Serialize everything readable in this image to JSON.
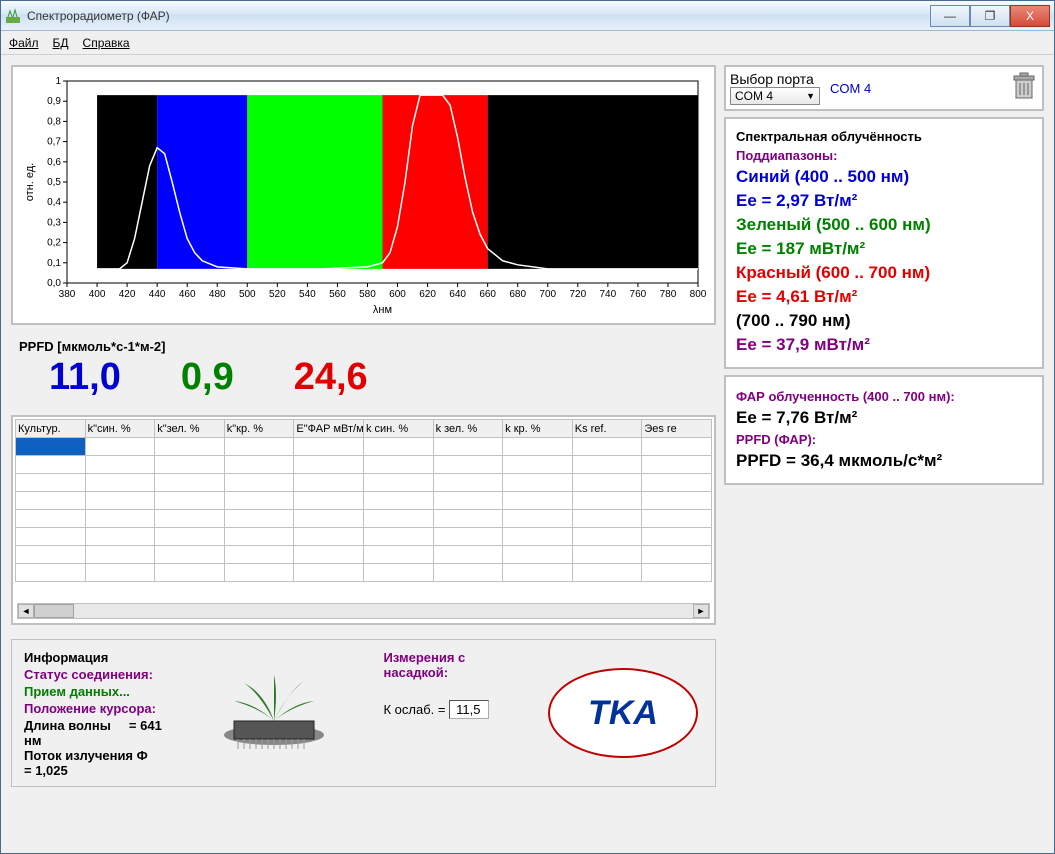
{
  "window": {
    "title": "Спектрорадиометр (ФАР)",
    "minimize": "—",
    "maximize": "❐",
    "close": "X"
  },
  "menubar": {
    "file": "Файл",
    "db": "БД",
    "help": "Справка"
  },
  "chart": {
    "ylabel": "отн. ед.",
    "xlabel": "λнм",
    "xlim": [
      380,
      800
    ],
    "ylim": [
      0,
      1
    ],
    "xtick_step": 20,
    "ytick_step": 0.1,
    "background_color": "#ffffff",
    "grid_color": "#000000",
    "tick_fontsize": 10,
    "label_fontsize": 11,
    "blocks": [
      {
        "from": 400,
        "to": 440,
        "color": "#000000"
      },
      {
        "from": 440,
        "to": 500,
        "color": "#0000ff"
      },
      {
        "from": 500,
        "to": 590,
        "color": "#00ff00"
      },
      {
        "from": 590,
        "to": 660,
        "color": "#ff0000"
      },
      {
        "from": 660,
        "to": 800,
        "color": "#000000"
      }
    ],
    "block_ylow": 0.07,
    "block_yhigh": 0.93,
    "curve_color": "#ffffff",
    "curve_width": 1.5,
    "curve": [
      [
        400,
        0.07
      ],
      [
        410,
        0.07
      ],
      [
        415,
        0.07
      ],
      [
        420,
        0.1
      ],
      [
        425,
        0.22
      ],
      [
        430,
        0.4
      ],
      [
        435,
        0.58
      ],
      [
        440,
        0.67
      ],
      [
        445,
        0.64
      ],
      [
        450,
        0.5
      ],
      [
        455,
        0.35
      ],
      [
        460,
        0.22
      ],
      [
        465,
        0.15
      ],
      [
        470,
        0.11
      ],
      [
        480,
        0.08
      ],
      [
        500,
        0.07
      ],
      [
        550,
        0.07
      ],
      [
        580,
        0.08
      ],
      [
        590,
        0.1
      ],
      [
        595,
        0.15
      ],
      [
        600,
        0.28
      ],
      [
        605,
        0.5
      ],
      [
        610,
        0.78
      ],
      [
        615,
        0.93
      ],
      [
        620,
        0.93
      ],
      [
        625,
        0.93
      ],
      [
        630,
        0.93
      ],
      [
        635,
        0.88
      ],
      [
        640,
        0.72
      ],
      [
        645,
        0.52
      ],
      [
        650,
        0.35
      ],
      [
        655,
        0.24
      ],
      [
        660,
        0.17
      ],
      [
        670,
        0.11
      ],
      [
        680,
        0.09
      ],
      [
        700,
        0.07
      ],
      [
        750,
        0.07
      ],
      [
        800,
        0.07
      ]
    ]
  },
  "ppfd": {
    "label": "PPFD [мкмоль*с-1*м-2]",
    "blue_value": "11,0",
    "blue_color": "#0000d0",
    "green_value": "0,9",
    "green_color": "#008000",
    "red_value": "24,6",
    "red_color": "#e00000"
  },
  "table": {
    "columns": [
      "Культур.",
      "k\"син. %",
      "k\"зел. %",
      "k\"кр. %",
      "E\"ФАР мВт/м2",
      "k син. %",
      "k зел. %",
      "k кр. %",
      "Ks ref.",
      "Эes re"
    ],
    "rows": [
      [
        "",
        "",
        "",
        "",
        "",
        "",
        "",
        "",
        "",
        ""
      ],
      [
        "",
        "",
        "",
        "",
        "",
        "",
        "",
        "",
        "",
        ""
      ],
      [
        "",
        "",
        "",
        "",
        "",
        "",
        "",
        "",
        "",
        ""
      ],
      [
        "",
        "",
        "",
        "",
        "",
        "",
        "",
        "",
        "",
        ""
      ],
      [
        "",
        "",
        "",
        "",
        "",
        "",
        "",
        "",
        "",
        ""
      ],
      [
        "",
        "",
        "",
        "",
        "",
        "",
        "",
        "",
        "",
        ""
      ],
      [
        "",
        "",
        "",
        "",
        "",
        "",
        "",
        "",
        "",
        ""
      ],
      [
        "",
        "",
        "",
        "",
        "",
        "",
        "",
        "",
        "",
        ""
      ]
    ],
    "selected_cell_bg": "#1060c0"
  },
  "port": {
    "label": "Выбор порта",
    "selected": "COM 4",
    "status": "COM  4"
  },
  "irradiance": {
    "title": "Спектральная облучённость",
    "subranges_label": "Поддиапазоны:",
    "blue_label": "Синий (400 .. 500 нм)",
    "blue_value_html": "Ee = 2,97 Вт/м²",
    "green_label": "Зеленый (500 .. 600 нм)",
    "green_value_html": "Ee = 187 мВт/м²",
    "red_label": "Красный (600 .. 700 нм)",
    "red_value_html": "Ee = 4,61 Вт/м²",
    "ir_label": "(700 .. 790 нм)",
    "ir_value_html": "Ee = 37,9 мВт/м²"
  },
  "par": {
    "title": "ФАР облученность (400 .. 700 нм):",
    "value": "Ee = 7,76 Вт/м²",
    "ppfd_title": "PPFD (ФАР):",
    "ppfd_value": "PPFD = 36,4 мкмоль/с*м²"
  },
  "info": {
    "title": "Информация",
    "conn_label": "Статус соединения:",
    "conn_status": "Прием данных...",
    "cursor_label": "Положение курсора:",
    "wavelength_label": "Длина волны",
    "wavelength_value": "= 641 нм",
    "flux_label": "Поток излучения Ф",
    "flux_value": "= 1,025",
    "measurement_label": "Измерения с насадкой:",
    "koeff_label": "К ослаб. =",
    "koeff_value": "11,5",
    "logo_text": "TKA"
  },
  "icons": {
    "trash": "trash-icon"
  }
}
